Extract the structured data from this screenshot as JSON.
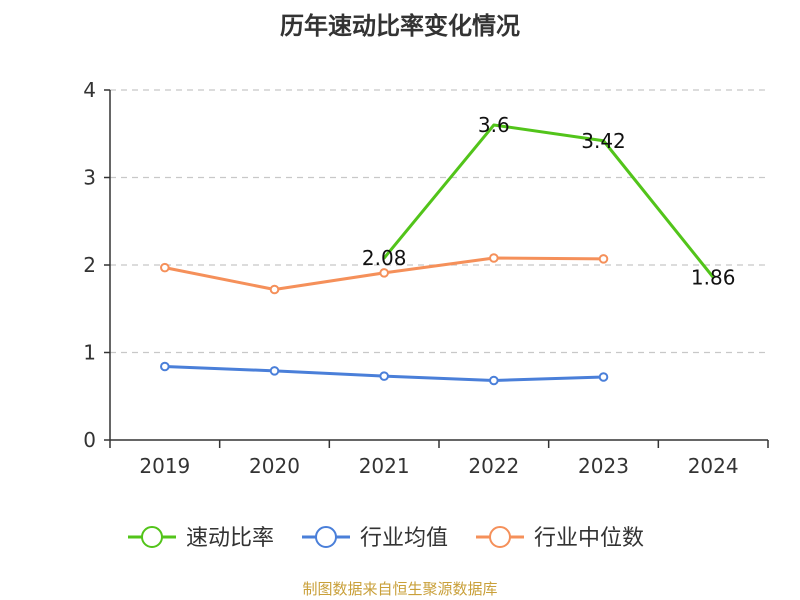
{
  "chart_data": {
    "type": "line",
    "title": "历年速动比率变化情况",
    "categories": [
      "2019",
      "2020",
      "2021",
      "2022",
      "2023",
      "2024"
    ],
    "ylim": [
      0,
      4
    ],
    "yticks": [
      0,
      1,
      2,
      3,
      4
    ],
    "grid": true,
    "legend_position": "bottom",
    "series": [
      {
        "name": "速动比率",
        "color": "#52c41a",
        "values": [
          null,
          null,
          2.08,
          3.6,
          3.42,
          1.86
        ],
        "labels": [
          null,
          null,
          "2.08",
          "3.6",
          "3.42",
          "1.86"
        ],
        "show_markers": false
      },
      {
        "name": "行业均值",
        "color": "#4a7fd9",
        "values": [
          0.84,
          0.79,
          0.73,
          0.68,
          0.72,
          null
        ],
        "show_markers": true
      },
      {
        "name": "行业中位数",
        "color": "#f5905a",
        "values": [
          1.97,
          1.72,
          1.91,
          2.08,
          2.07,
          null
        ],
        "show_markers": true
      }
    ]
  },
  "footer": {
    "source": "制图数据来自恒生聚源数据库"
  }
}
